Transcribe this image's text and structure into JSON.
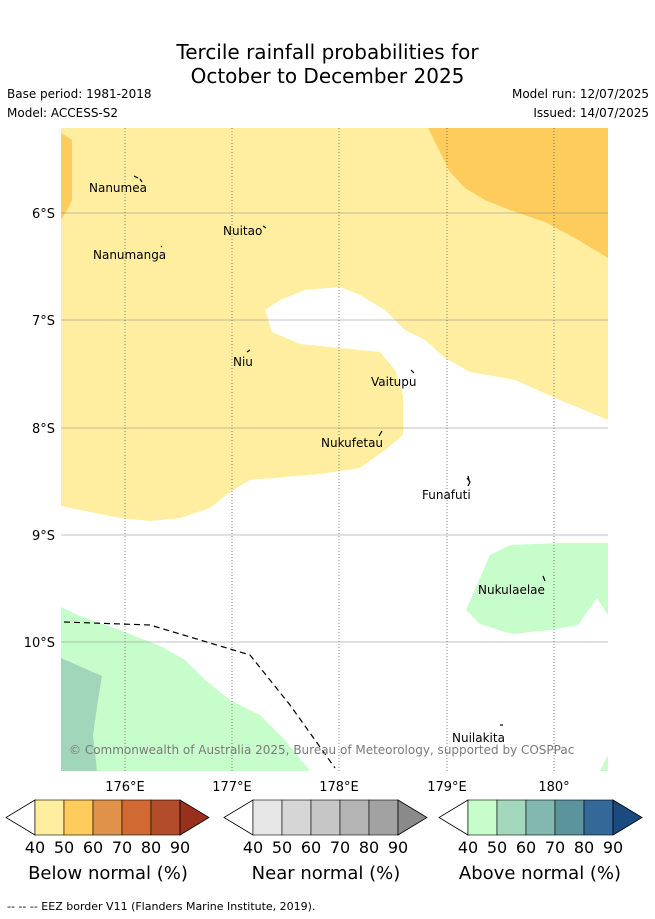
{
  "title": {
    "line1": "Tercile rainfall probabilities for",
    "line2": "October to December 2025"
  },
  "meta": {
    "base_period": "Base period: 1981-2018",
    "model": "Model: ACCESS-S2",
    "model_run": "Model run: 12/07/2025",
    "issued": "Issued: 14/07/2025"
  },
  "map": {
    "lat_ticks": [
      "6°S",
      "7°S",
      "8°S",
      "9°S",
      "10°S"
    ],
    "lon_ticks": [
      "176°E",
      "177°E",
      "178°E",
      "179°E",
      "180°"
    ],
    "places": [
      "Nanumea",
      "Nuitao",
      "Nanumanga",
      "Niu",
      "Vaitupu",
      "Nukufetau",
      "Funafuti",
      "Nukulaelae",
      "Nuilakita"
    ],
    "copyright": "© Commonwealth of Australia 2025, Bureau of Meteorology, supported by COSPPac",
    "colors": {
      "below_40": "#ffeda0",
      "below_50": "#fecc5c",
      "above_40": "#c7fccb",
      "above_50": "#a1d6bb"
    }
  },
  "colorbars": [
    {
      "label": "Below normal (%)",
      "ticks": [
        "40",
        "50",
        "60",
        "70",
        "80",
        "90"
      ],
      "colors": [
        "#ffeda0",
        "#fecc5c",
        "#e0924a",
        "#d06a32",
        "#b34c2a",
        "#99301e"
      ]
    },
    {
      "label": "Near normal (%)",
      "ticks": [
        "40",
        "50",
        "60",
        "70",
        "80",
        "90"
      ],
      "colors": [
        "#e6e6e6",
        "#d6d6d6",
        "#c6c6c6",
        "#b4b4b4",
        "#a2a2a2",
        "#8a8a8a"
      ]
    },
    {
      "label": "Above normal (%)",
      "ticks": [
        "40",
        "50",
        "60",
        "70",
        "80",
        "90"
      ],
      "colors": [
        "#c7fccb",
        "#a4d8bc",
        "#82b8b0",
        "#5c949e",
        "#336898",
        "#1a4a80"
      ]
    }
  ],
  "footnote": "--  --  -- EEZ border V11 (Flanders Marine Institute, 2019)."
}
